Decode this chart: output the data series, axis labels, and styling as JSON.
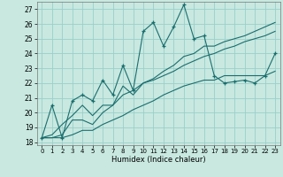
{
  "xlabel": "Humidex (Indice chaleur)",
  "background_color": "#c8e8e0",
  "grid_color": "#9acfca",
  "line_color": "#1a6e6e",
  "xlim": [
    -0.5,
    23.5
  ],
  "ylim": [
    17.8,
    27.5
  ],
  "yticks": [
    18,
    19,
    20,
    21,
    22,
    23,
    24,
    25,
    26,
    27
  ],
  "xticks": [
    0,
    1,
    2,
    3,
    4,
    5,
    6,
    7,
    8,
    9,
    10,
    11,
    12,
    13,
    14,
    15,
    16,
    17,
    18,
    19,
    20,
    21,
    22,
    23
  ],
  "x_data": [
    0,
    1,
    2,
    3,
    4,
    5,
    6,
    7,
    8,
    9,
    10,
    11,
    12,
    13,
    14,
    15,
    16,
    17,
    18,
    19,
    20,
    21,
    22,
    23
  ],
  "y_zigzag": [
    18.3,
    20.5,
    18.3,
    20.8,
    21.2,
    20.8,
    22.2,
    21.2,
    23.2,
    21.5,
    25.5,
    26.1,
    24.5,
    25.8,
    27.3,
    25.0,
    25.2,
    22.5,
    22.0,
    22.1,
    22.2,
    22.0,
    22.5,
    24.0
  ],
  "y_line1": [
    18.3,
    18.5,
    19.2,
    19.8,
    20.5,
    19.8,
    20.5,
    20.5,
    21.8,
    21.2,
    22.0,
    22.3,
    22.8,
    23.2,
    23.8,
    24.0,
    24.5,
    24.5,
    24.8,
    25.0,
    25.2,
    25.5,
    25.8,
    26.1
  ],
  "y_line2": [
    18.3,
    18.3,
    18.5,
    19.5,
    19.5,
    19.2,
    20.0,
    20.5,
    21.2,
    21.5,
    22.0,
    22.2,
    22.5,
    22.8,
    23.2,
    23.5,
    23.8,
    24.0,
    24.3,
    24.5,
    24.8,
    25.0,
    25.2,
    25.5
  ],
  "y_line3": [
    18.3,
    18.3,
    18.3,
    18.5,
    18.8,
    18.8,
    19.2,
    19.5,
    19.8,
    20.2,
    20.5,
    20.8,
    21.2,
    21.5,
    21.8,
    22.0,
    22.2,
    22.2,
    22.5,
    22.5,
    22.5,
    22.5,
    22.5,
    22.8
  ]
}
